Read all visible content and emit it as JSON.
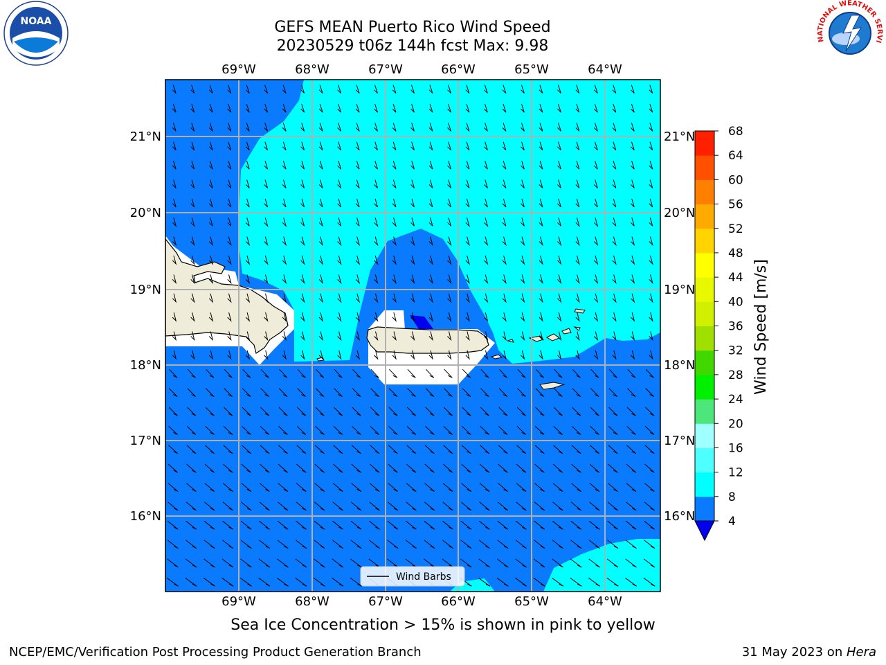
{
  "title": {
    "line1": "GEFS MEAN Puerto Rico Wind Speed",
    "line2": "20230529 t06z 144h fcst   Max: 9.98"
  },
  "map": {
    "lon_labels": [
      "69°W",
      "68°W",
      "67°W",
      "66°W",
      "65°W",
      "64°W"
    ],
    "lat_labels": [
      "21°N",
      "20°N",
      "19°N",
      "18°N",
      "17°N",
      "16°N"
    ],
    "lon_range": [
      -70.0,
      -63.25
    ],
    "lat_range": [
      15.0,
      21.75
    ],
    "legend_label": "Wind Barbs",
    "ocean_low_color": "#0a7bff",
    "ocean_high_color": "#00ffff",
    "land_color": "#efecd9"
  },
  "colorbar": {
    "label": "Wind Speed [m/s]",
    "ticks": [
      "4",
      "8",
      "12",
      "16",
      "20",
      "24",
      "28",
      "32",
      "36",
      "40",
      "44",
      "48",
      "52",
      "56",
      "60",
      "64",
      "68"
    ],
    "colors": [
      "#0a7bff",
      "#00ffff",
      "#4dffff",
      "#a0ffff",
      "#4ce67a",
      "#00f000",
      "#40d800",
      "#a0e000",
      "#d0f000",
      "#e8f800",
      "#ffff00",
      "#ffd400",
      "#ffaa00",
      "#ff8000",
      "#ff5000",
      "#ff2000"
    ],
    "under_color": "#0000ee"
  },
  "caption": "Sea Ice Concentration > 15% is shown in pink to yellow",
  "footer": {
    "left": "NCEP/EMC/Verification Post Processing Product Generation Branch",
    "date": "31 May 2023 on ",
    "host": "Hera"
  },
  "logos": {
    "noaa": "NOAA",
    "nws": "NATIONAL WEATHER SERVICE"
  }
}
